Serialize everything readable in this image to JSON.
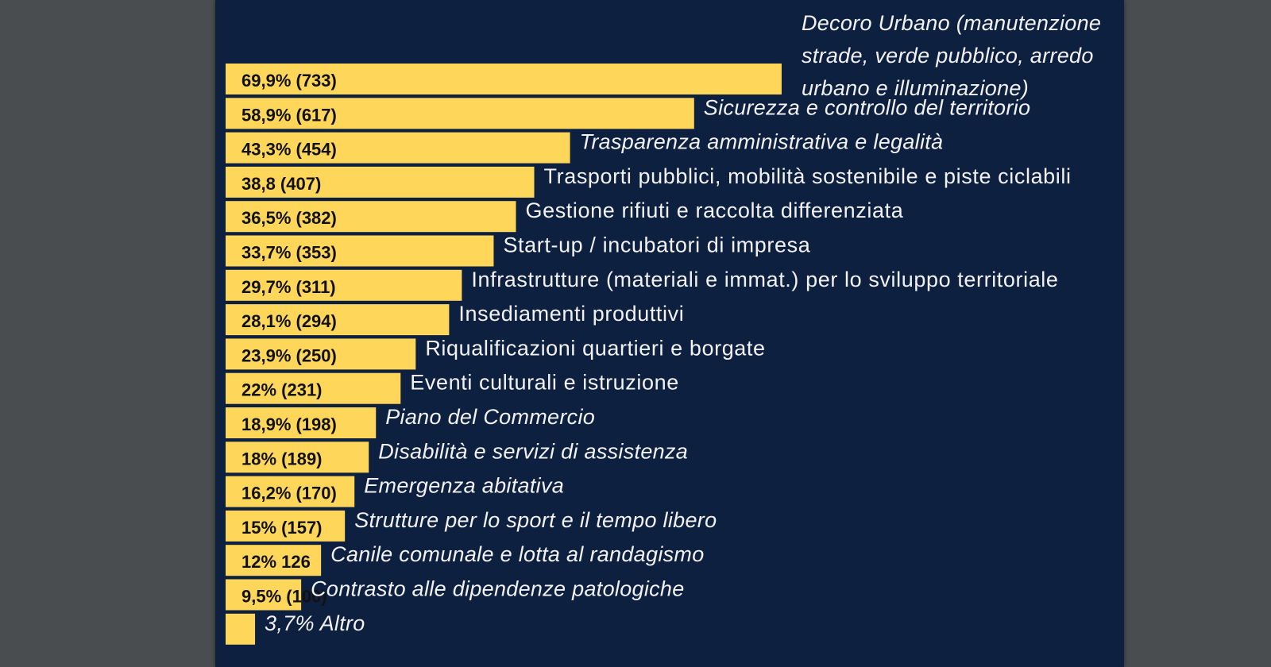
{
  "colors": {
    "page_background": "#4a4d4f",
    "slide_background": "#0e2040",
    "bar": "#fdd65a",
    "value_text": "#111111",
    "category_text": "#f2f2f2"
  },
  "chart_data": {
    "type": "bar",
    "orientation": "horizontal",
    "grid": false,
    "legend": "none",
    "xlim": [
      0,
      74
    ],
    "bars": [
      {
        "value": 69.9,
        "count": 733,
        "value_label": "69,9% (733)",
        "category_lines": [
          "Decoro Urbano (manutenzione",
          "strade, verde pubblico, arredo",
          "urbano e illuminazione)"
        ],
        "italic": true
      },
      {
        "value": 58.9,
        "count": 617,
        "value_label": "58,9% (617)",
        "category_lines": [
          "Sicurezza e controllo del territorio"
        ],
        "italic": true
      },
      {
        "value": 43.3,
        "count": 454,
        "value_label": "43,3% (454)",
        "category_lines": [
          "Trasparenza amministrativa e legalità"
        ],
        "italic": true
      },
      {
        "value": 38.8,
        "count": 407,
        "value_label": "38,8 (407)",
        "category_lines": [
          "Trasporti pubblici, mobilità sostenibile e piste ciclabili"
        ],
        "italic": false
      },
      {
        "value": 36.5,
        "count": 382,
        "value_label": "36,5% (382)",
        "category_lines": [
          "Gestione rifiuti e raccolta differenziata"
        ],
        "italic": false
      },
      {
        "value": 33.7,
        "count": 353,
        "value_label": "33,7% (353)",
        "category_lines": [
          "Start-up / incubatori di impresa"
        ],
        "italic": false
      },
      {
        "value": 29.7,
        "count": 311,
        "value_label": "29,7% (311)",
        "category_lines": [
          "Infrastrutture (materiali e immat.) per lo sviluppo territoriale"
        ],
        "italic": false
      },
      {
        "value": 28.1,
        "count": 294,
        "value_label": "28,1% (294)",
        "category_lines": [
          "Insediamenti produttivi"
        ],
        "italic": false
      },
      {
        "value": 23.9,
        "count": 250,
        "value_label": "23,9% (250)",
        "category_lines": [
          "Riqualificazioni quartieri e borgate"
        ],
        "italic": false
      },
      {
        "value": 22,
        "count": 231,
        "value_label": "22% (231)",
        "category_lines": [
          "Eventi culturali e istruzione"
        ],
        "italic": false
      },
      {
        "value": 18.9,
        "count": 198,
        "value_label": "18,9% (198)",
        "category_lines": [
          "Piano del Commercio"
        ],
        "italic": true
      },
      {
        "value": 18,
        "count": 189,
        "value_label": "18% (189)",
        "category_lines": [
          "Disabilità e servizi di assistenza"
        ],
        "italic": true
      },
      {
        "value": 16.2,
        "count": 170,
        "value_label": "16,2% (170)",
        "category_lines": [
          "Emergenza abitativa"
        ],
        "italic": true
      },
      {
        "value": 15,
        "count": 157,
        "value_label": "15% (157)",
        "category_lines": [
          "Strutture per lo sport e il tempo libero"
        ],
        "italic": true
      },
      {
        "value": 12,
        "count": 126,
        "value_label": "12% 126",
        "category_lines": [
          "Canile comunale e lotta al randagismo"
        ],
        "italic": true
      },
      {
        "value": 9.5,
        "count": 100,
        "value_label": "9,5% (100)",
        "category_lines": [
          "Contrasto alle dipendenze patologiche"
        ],
        "italic": true
      },
      {
        "value": 3.7,
        "value_label": "",
        "category_lines": [
          "3,7% Altro"
        ],
        "italic": true
      }
    ]
  }
}
